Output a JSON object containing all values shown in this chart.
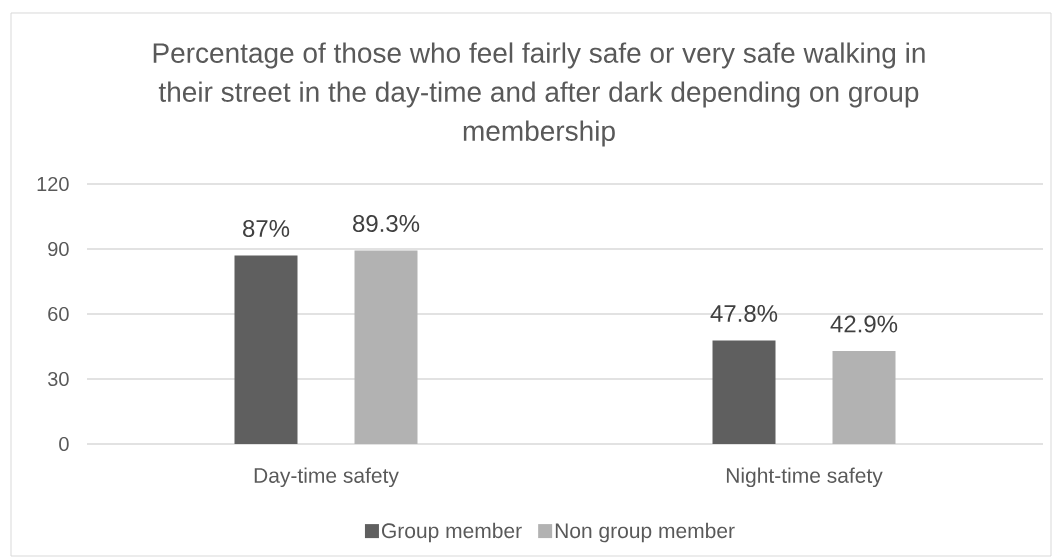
{
  "chart_data": {
    "type": "bar",
    "title": "Percentage of those who feel fairly safe or very safe walking in their street in the day-time and after dark depending on group membership",
    "categories": [
      "Day-time safety",
      "Night-time safety"
    ],
    "series": [
      {
        "name": "Group member",
        "color": "#5f5f5f",
        "values": [
          87,
          47.8
        ],
        "value_labels": [
          "87%",
          "47.8%"
        ]
      },
      {
        "name": "Non group member",
        "color": "#b2b2b2",
        "values": [
          89.3,
          42.9
        ],
        "value_labels": [
          "89.3%",
          "42.9%"
        ]
      }
    ],
    "ylim": [
      0,
      120
    ],
    "yticks": [
      0,
      30,
      60,
      90,
      120
    ],
    "grid": "y",
    "legend": "bottom"
  }
}
